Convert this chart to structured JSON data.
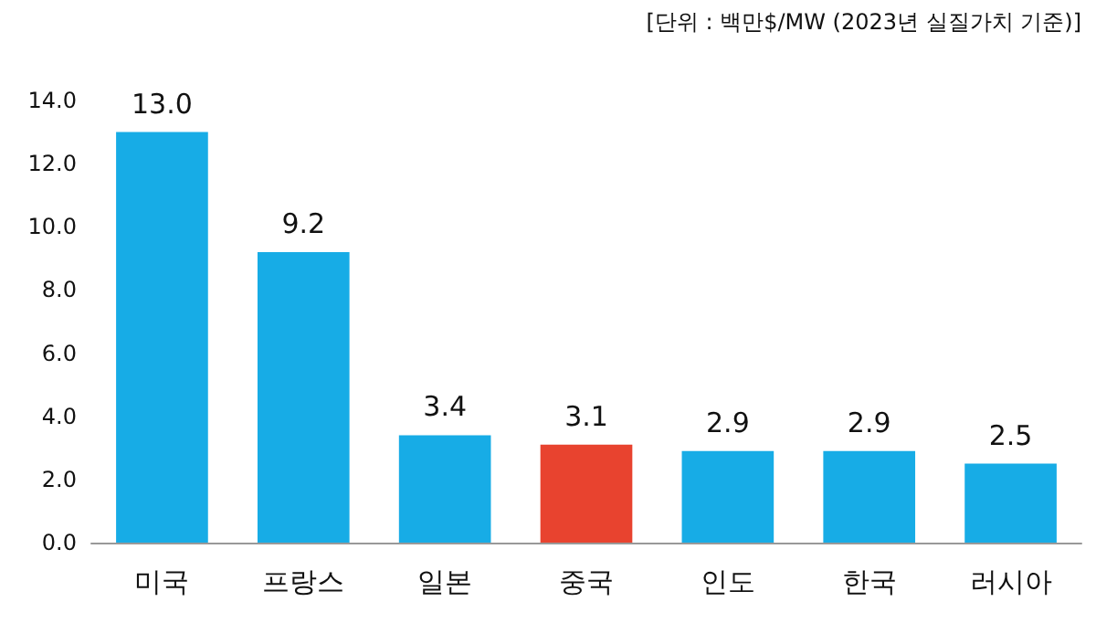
{
  "chart_data": {
    "type": "bar",
    "annotations": [
      "[단위 : 백만$/MW (2023년 실질가치 기준)]"
    ],
    "categories": [
      "미국",
      "프랑스",
      "일본",
      "중국",
      "인도",
      "한국",
      "러시아"
    ],
    "values": [
      13.0,
      9.2,
      3.4,
      3.1,
      2.9,
      2.9,
      2.5
    ],
    "colors": [
      "#17ace6",
      "#17ace6",
      "#17ace6",
      "#e8432f",
      "#17ace6",
      "#17ace6",
      "#17ace6"
    ],
    "value_labels": [
      "13.0",
      "9.2",
      "3.4",
      "3.1",
      "2.9",
      "2.9",
      "2.5"
    ],
    "ylim": [
      0,
      14
    ],
    "yticks": [
      {
        "value": 0,
        "label": "0.0"
      },
      {
        "value": 2,
        "label": "2.0"
      },
      {
        "value": 4,
        "label": "4.0"
      },
      {
        "value": 6,
        "label": "6.0"
      },
      {
        "value": 8,
        "label": "8.0"
      },
      {
        "value": 10,
        "label": "10.0"
      },
      {
        "value": 12,
        "label": "12.0"
      },
      {
        "value": 14,
        "label": "14.0"
      }
    ],
    "grid": false
  }
}
